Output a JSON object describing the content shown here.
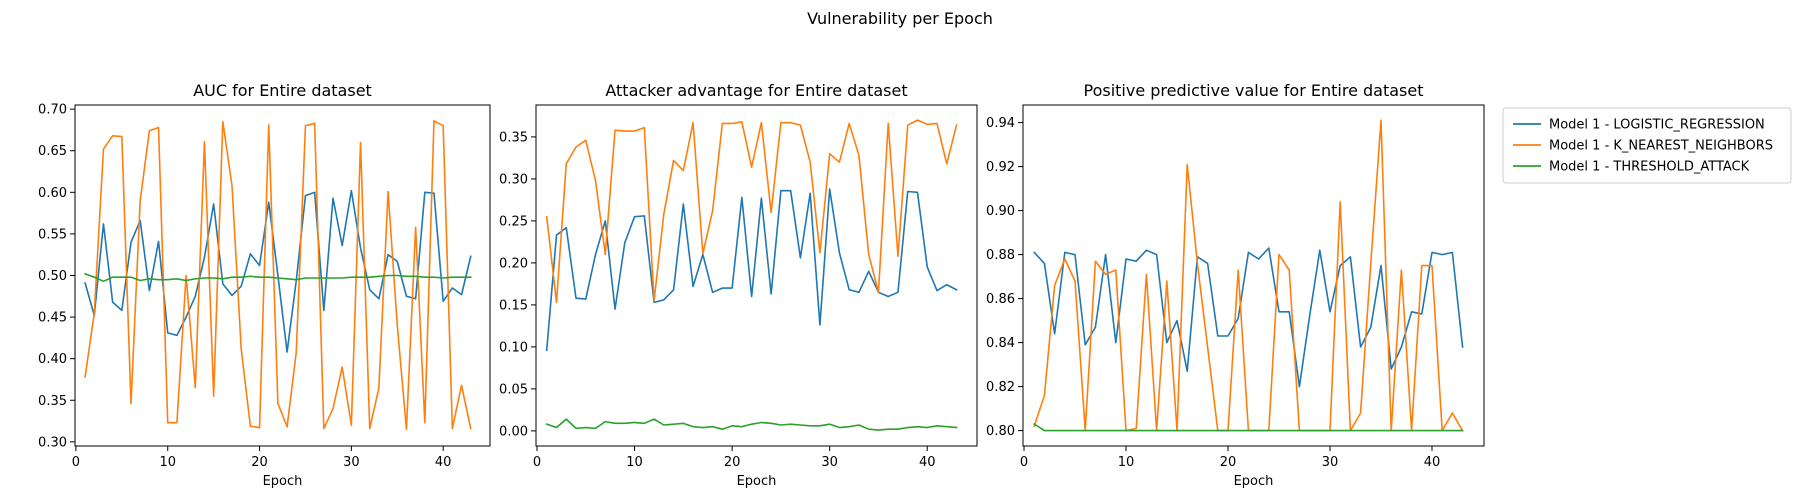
{
  "figure": {
    "title": "Vulnerability per Epoch"
  },
  "legend": {
    "placement": "outside right of third panel, top",
    "entries": [
      {
        "label": "Model 1 - LOGISTIC_REGRESSION",
        "color": "#1f77b4"
      },
      {
        "label": "Model 1 - K_NEAREST_NEIGHBORS",
        "color": "#ff7f0e"
      },
      {
        "label": "Model 1 - THRESHOLD_ATTACK",
        "color": "#2ca02c"
      }
    ]
  },
  "chart_data": [
    {
      "type": "line",
      "title": "AUC for Entire dataset",
      "xlabel": "Epoch",
      "ylabel": "",
      "xlim": [
        -0.1,
        45.1
      ],
      "ylim": [
        0.295,
        0.705
      ],
      "xticks": [
        0,
        10,
        20,
        30,
        40
      ],
      "yticks": [
        0.3,
        0.35,
        0.4,
        0.45,
        0.5,
        0.55,
        0.6,
        0.65,
        0.7
      ],
      "ytick_labels": [
        "0.30",
        "0.35",
        "0.40",
        "0.45",
        "0.50",
        "0.55",
        "0.60",
        "0.65",
        "0.70"
      ],
      "grid": false,
      "x": [
        1,
        2,
        3,
        4,
        5,
        6,
        7,
        8,
        9,
        10,
        11,
        12,
        13,
        14,
        15,
        16,
        17,
        18,
        19,
        20,
        21,
        22,
        23,
        24,
        25,
        26,
        27,
        28,
        29,
        30,
        31,
        32,
        33,
        34,
        35,
        36,
        37,
        38,
        39,
        40,
        41,
        42,
        43
      ],
      "series": [
        {
          "name": "Model 1 - LOGISTIC_REGRESSION",
          "color": "#1f77b4",
          "values": [
            0.491,
            0.452,
            0.562,
            0.468,
            0.458,
            0.54,
            0.566,
            0.482,
            0.541,
            0.431,
            0.428,
            0.45,
            0.475,
            0.522,
            0.586,
            0.49,
            0.476,
            0.487,
            0.526,
            0.512,
            0.588,
            0.5,
            0.408,
            0.494,
            0.596,
            0.6,
            0.458,
            0.593,
            0.536,
            0.602,
            0.533,
            0.483,
            0.472,
            0.525,
            0.517,
            0.475,
            0.472,
            0.6,
            0.599,
            0.469,
            0.485,
            0.477,
            0.523
          ]
        },
        {
          "name": "Model 1 - K_NEAREST_NEIGHBORS",
          "color": "#ff7f0e",
          "values": [
            0.378,
            0.455,
            0.652,
            0.668,
            0.667,
            0.346,
            0.59,
            0.674,
            0.678,
            0.323,
            0.323,
            0.5,
            0.365,
            0.661,
            0.355,
            0.685,
            0.608,
            0.412,
            0.319,
            0.317,
            0.681,
            0.346,
            0.318,
            0.408,
            0.68,
            0.683,
            0.316,
            0.34,
            0.39,
            0.32,
            0.66,
            0.316,
            0.365,
            0.601,
            0.44,
            0.315,
            0.558,
            0.323,
            0.686,
            0.68,
            0.316,
            0.368,
            0.316
          ]
        },
        {
          "name": "Model 1 - THRESHOLD_ATTACK",
          "color": "#2ca02c",
          "values": [
            0.502,
            0.498,
            0.493,
            0.498,
            0.498,
            0.498,
            0.494,
            0.496,
            0.495,
            0.495,
            0.496,
            0.494,
            0.496,
            0.497,
            0.497,
            0.496,
            0.498,
            0.498,
            0.499,
            0.498,
            0.498,
            0.497,
            0.496,
            0.495,
            0.497,
            0.497,
            0.497,
            0.497,
            0.497,
            0.498,
            0.498,
            0.498,
            0.499,
            0.5,
            0.5,
            0.499,
            0.499,
            0.498,
            0.498,
            0.497,
            0.498,
            0.498,
            0.498
          ]
        }
      ]
    },
    {
      "type": "line",
      "title": "Attacker advantage for Entire dataset",
      "xlabel": "Epoch",
      "ylabel": "",
      "xlim": [
        -0.1,
        45.1
      ],
      "ylim": [
        -0.018,
        0.388
      ],
      "xticks": [
        0,
        10,
        20,
        30,
        40
      ],
      "yticks": [
        0.0,
        0.05,
        0.1,
        0.15,
        0.2,
        0.25,
        0.3,
        0.35
      ],
      "ytick_labels": [
        "0.00",
        "0.05",
        "0.10",
        "0.15",
        "0.20",
        "0.25",
        "0.30",
        "0.35"
      ],
      "grid": false,
      "x": [
        1,
        2,
        3,
        4,
        5,
        6,
        7,
        8,
        9,
        10,
        11,
        12,
        13,
        14,
        15,
        16,
        17,
        18,
        19,
        20,
        21,
        22,
        23,
        24,
        25,
        26,
        27,
        28,
        29,
        30,
        31,
        32,
        33,
        34,
        35,
        36,
        37,
        38,
        39,
        40,
        41,
        42,
        43
      ],
      "series": [
        {
          "name": "Model 1 - LOGISTIC_REGRESSION",
          "color": "#1f77b4",
          "values": [
            0.096,
            0.233,
            0.242,
            0.158,
            0.157,
            0.21,
            0.25,
            0.145,
            0.224,
            0.255,
            0.256,
            0.153,
            0.156,
            0.168,
            0.27,
            0.172,
            0.21,
            0.165,
            0.17,
            0.17,
            0.278,
            0.16,
            0.277,
            0.163,
            0.286,
            0.286,
            0.206,
            0.283,
            0.126,
            0.288,
            0.212,
            0.168,
            0.165,
            0.19,
            0.165,
            0.16,
            0.165,
            0.285,
            0.284,
            0.195,
            0.167,
            0.174,
            0.168
          ]
        },
        {
          "name": "Model 1 - K_NEAREST_NEIGHBORS",
          "color": "#ff7f0e",
          "values": [
            0.255,
            0.153,
            0.318,
            0.338,
            0.346,
            0.298,
            0.21,
            0.358,
            0.357,
            0.357,
            0.361,
            0.155,
            0.258,
            0.322,
            0.31,
            0.367,
            0.211,
            0.262,
            0.366,
            0.366,
            0.368,
            0.314,
            0.367,
            0.26,
            0.367,
            0.367,
            0.364,
            0.32,
            0.212,
            0.33,
            0.32,
            0.366,
            0.328,
            0.21,
            0.165,
            0.366,
            0.208,
            0.364,
            0.37,
            0.365,
            0.366,
            0.318,
            0.364
          ]
        },
        {
          "name": "Model 1 - THRESHOLD_ATTACK",
          "color": "#2ca02c",
          "values": [
            0.008,
            0.004,
            0.014,
            0.003,
            0.004,
            0.003,
            0.011,
            0.009,
            0.009,
            0.01,
            0.009,
            0.014,
            0.007,
            0.008,
            0.009,
            0.005,
            0.004,
            0.005,
            0.002,
            0.006,
            0.005,
            0.008,
            0.01,
            0.009,
            0.007,
            0.008,
            0.007,
            0.006,
            0.006,
            0.008,
            0.004,
            0.005,
            0.007,
            0.002,
            0.001,
            0.002,
            0.002,
            0.004,
            0.005,
            0.004,
            0.006,
            0.005,
            0.004
          ]
        }
      ]
    },
    {
      "type": "line",
      "title": "Positive predictive value for Entire dataset",
      "xlabel": "Epoch",
      "ylabel": "",
      "xlim": [
        -0.1,
        45.1
      ],
      "ylim": [
        0.793,
        0.948
      ],
      "xticks": [
        0,
        10,
        20,
        30,
        40
      ],
      "yticks": [
        0.8,
        0.82,
        0.84,
        0.86,
        0.88,
        0.9,
        0.92,
        0.94
      ],
      "ytick_labels": [
        "0.80",
        "0.82",
        "0.84",
        "0.86",
        "0.88",
        "0.90",
        "0.92",
        "0.94"
      ],
      "grid": false,
      "x": [
        1,
        2,
        3,
        4,
        5,
        6,
        7,
        8,
        9,
        10,
        11,
        12,
        13,
        14,
        15,
        16,
        17,
        18,
        19,
        20,
        21,
        22,
        23,
        24,
        25,
        26,
        27,
        28,
        29,
        30,
        31,
        32,
        33,
        34,
        35,
        36,
        37,
        38,
        39,
        40,
        41,
        42,
        43
      ],
      "series": [
        {
          "name": "Model 1 - LOGISTIC_REGRESSION",
          "color": "#1f77b4",
          "values": [
            0.881,
            0.876,
            0.844,
            0.881,
            0.88,
            0.839,
            0.847,
            0.88,
            0.84,
            0.878,
            0.877,
            0.882,
            0.88,
            0.84,
            0.85,
            0.827,
            0.879,
            0.876,
            0.843,
            0.843,
            0.851,
            0.881,
            0.878,
            0.883,
            0.854,
            0.854,
            0.82,
            0.852,
            0.882,
            0.854,
            0.875,
            0.879,
            0.838,
            0.847,
            0.875,
            0.828,
            0.838,
            0.854,
            0.853,
            0.881,
            0.88,
            0.881,
            0.838
          ]
        },
        {
          "name": "Model 1 - K_NEAREST_NEIGHBORS",
          "color": "#ff7f0e",
          "values": [
            0.802,
            0.816,
            0.866,
            0.878,
            0.868,
            0.8,
            0.877,
            0.871,
            0.873,
            0.8,
            0.801,
            0.871,
            0.8,
            0.868,
            0.8,
            0.921,
            0.876,
            0.838,
            0.8,
            0.8,
            0.873,
            0.8,
            0.8,
            0.8,
            0.88,
            0.873,
            0.8,
            0.8,
            0.8,
            0.8,
            0.904,
            0.8,
            0.808,
            0.876,
            0.941,
            0.8,
            0.873,
            0.8,
            0.875,
            0.875,
            0.8,
            0.808,
            0.8
          ]
        },
        {
          "name": "Model 1 - THRESHOLD_ATTACK",
          "color": "#2ca02c",
          "values": [
            0.803,
            0.8,
            0.8,
            0.8,
            0.8,
            0.8,
            0.8,
            0.8,
            0.8,
            0.8,
            0.8,
            0.8,
            0.8,
            0.8,
            0.8,
            0.8,
            0.8,
            0.8,
            0.8,
            0.8,
            0.8,
            0.8,
            0.8,
            0.8,
            0.8,
            0.8,
            0.8,
            0.8,
            0.8,
            0.8,
            0.8,
            0.8,
            0.8,
            0.8,
            0.8,
            0.8,
            0.8,
            0.8,
            0.8,
            0.8,
            0.8,
            0.8,
            0.8
          ]
        }
      ]
    }
  ]
}
